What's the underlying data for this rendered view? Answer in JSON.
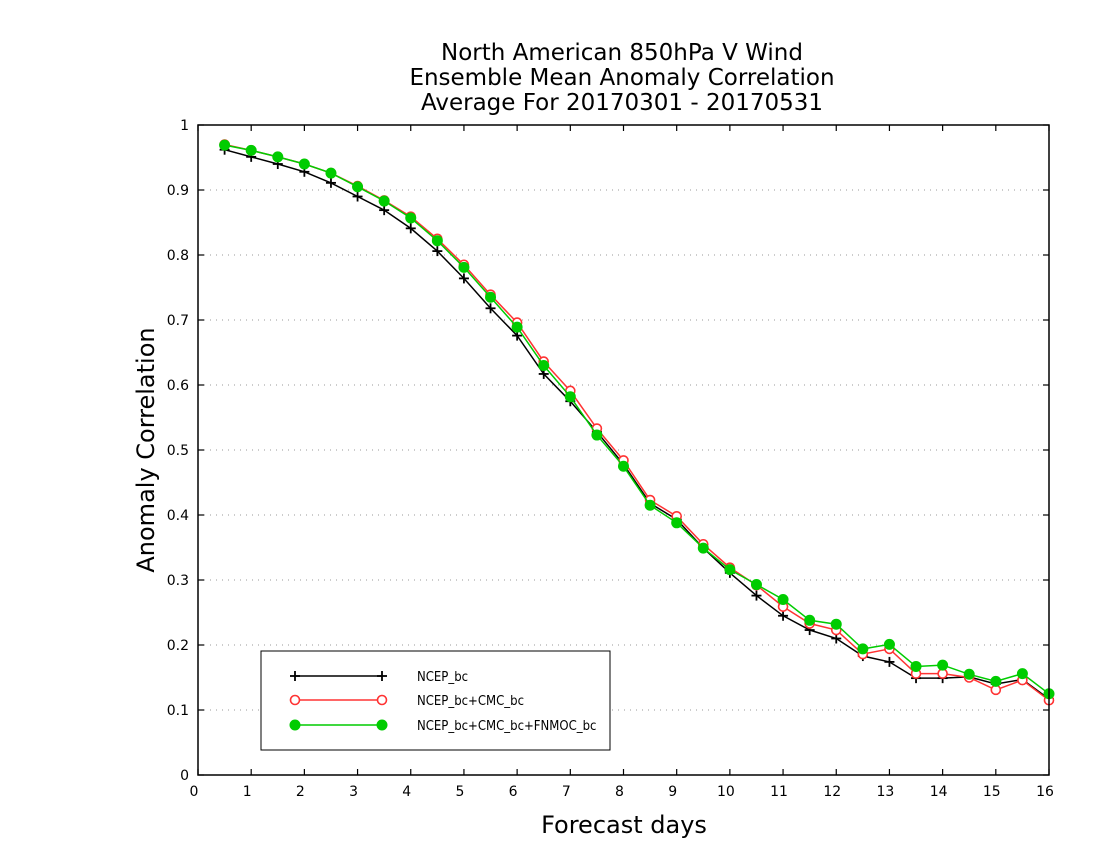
{
  "chart_data": {
    "type": "line",
    "title_lines": [
      "North American 850hPa V Wind",
      "Ensemble Mean Anomaly Correlation",
      "Average For 20170301 - 20170531"
    ],
    "xlabel": "Forecast days",
    "ylabel": "Anomaly Correlation",
    "xlim": [
      0,
      16
    ],
    "ylim": [
      0,
      1
    ],
    "x_ticks": [
      0,
      1,
      2,
      3,
      4,
      5,
      6,
      7,
      8,
      9,
      10,
      11,
      12,
      13,
      14,
      15,
      16
    ],
    "x_tick_labels": [
      "0",
      "1",
      "2",
      "3",
      "4",
      "5",
      "6",
      "7",
      "8",
      "9",
      "10",
      "11",
      "12",
      "13",
      "14",
      "15",
      "16"
    ],
    "y_ticks": [
      0,
      0.1,
      0.2,
      0.3,
      0.4,
      0.5,
      0.6,
      0.7,
      0.8,
      0.9,
      1
    ],
    "y_tick_labels": [
      "0",
      "0.1",
      "0.2",
      "0.3",
      "0.4",
      "0.5",
      "0.6",
      "0.7",
      "0.8",
      "0.9",
      "1"
    ],
    "grid": "horizontal-dotted",
    "legend_position": "bottom-left",
    "x": [
      0.5,
      1,
      1.5,
      2,
      2.5,
      3,
      3.5,
      4,
      4.5,
      5,
      5.5,
      6,
      6.5,
      7,
      7.5,
      8,
      8.5,
      9,
      9.5,
      10,
      10.5,
      11,
      11.5,
      12,
      12.5,
      13,
      13.5,
      14,
      14.5,
      15,
      15.5,
      16
    ],
    "series": [
      {
        "name": "NCEP_bc",
        "color": "#000000",
        "marker": "plus",
        "values": [
          0.962,
          0.951,
          0.94,
          0.928,
          0.911,
          0.89,
          0.869,
          0.841,
          0.806,
          0.764,
          0.718,
          0.676,
          0.617,
          0.575,
          0.528,
          0.478,
          0.418,
          0.393,
          0.349,
          0.311,
          0.276,
          0.245,
          0.223,
          0.21,
          0.183,
          0.174,
          0.149,
          0.149,
          0.151,
          0.14,
          0.147,
          0.117
        ]
      },
      {
        "name": "NCEP_bc+CMC_bc",
        "color": "#ff3333",
        "marker": "open-circle",
        "values": [
          0.97,
          0.961,
          0.951,
          0.94,
          0.926,
          0.906,
          0.884,
          0.859,
          0.825,
          0.785,
          0.739,
          0.696,
          0.636,
          0.591,
          0.533,
          0.484,
          0.423,
          0.398,
          0.355,
          0.319,
          0.292,
          0.259,
          0.233,
          0.223,
          0.186,
          0.194,
          0.156,
          0.156,
          0.15,
          0.131,
          0.146,
          0.115
        ]
      },
      {
        "name": "NCEP_bc+CMC_bc+FNMOC_bc",
        "color": "#00cc00",
        "marker": "filled-circle",
        "values": [
          0.969,
          0.961,
          0.951,
          0.94,
          0.926,
          0.905,
          0.883,
          0.857,
          0.822,
          0.781,
          0.735,
          0.689,
          0.63,
          0.582,
          0.523,
          0.475,
          0.415,
          0.388,
          0.349,
          0.316,
          0.293,
          0.27,
          0.238,
          0.232,
          0.194,
          0.201,
          0.167,
          0.169,
          0.155,
          0.144,
          0.156,
          0.125
        ]
      }
    ]
  }
}
